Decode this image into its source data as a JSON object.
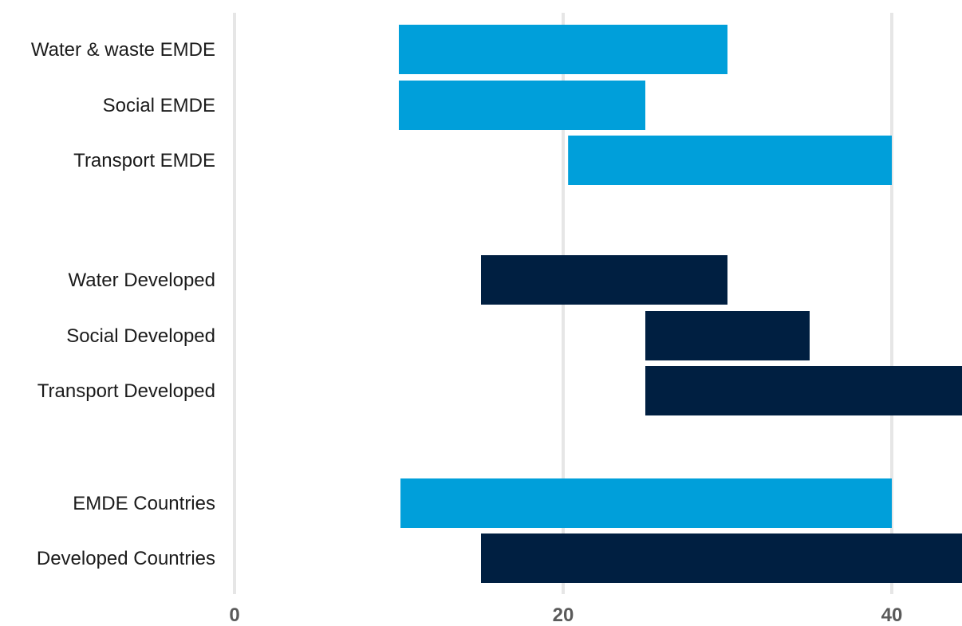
{
  "chart_data": {
    "type": "bar",
    "orientation": "horizontal-range",
    "title": "",
    "xlabel": "",
    "ylabel": "",
    "xlim": [
      0,
      44.4
    ],
    "x_ticks": [
      "0",
      "20",
      "40"
    ],
    "grid": true,
    "categories": [
      "Water & waste EMDE",
      "Social EMDE",
      "Transport EMDE",
      "Water Developed",
      "Social Developed",
      "Transport Developed",
      "EMDE Countries",
      "Developed Countries"
    ],
    "ranges": [
      {
        "category": "Water & waste EMDE",
        "start": 10,
        "end": 30,
        "color": "#009fda"
      },
      {
        "category": "Social EMDE",
        "start": 10,
        "end": 25,
        "color": "#009fda"
      },
      {
        "category": "Transport EMDE",
        "start": 20.3,
        "end": 40,
        "color": "#009fda"
      },
      {
        "category": "Water Developed",
        "start": 15,
        "end": 30,
        "color": "#001f41"
      },
      {
        "category": "Social Developed",
        "start": 25,
        "end": 35,
        "color": "#001f41"
      },
      {
        "category": "Transport Developed",
        "start": 25,
        "end": 44.4,
        "color": "#001f41"
      },
      {
        "category": "EMDE Countries",
        "start": 10.1,
        "end": 40,
        "color": "#009fda"
      },
      {
        "category": "Developed Countries",
        "start": 15,
        "end": 44.4,
        "color": "#001f41"
      }
    ]
  }
}
